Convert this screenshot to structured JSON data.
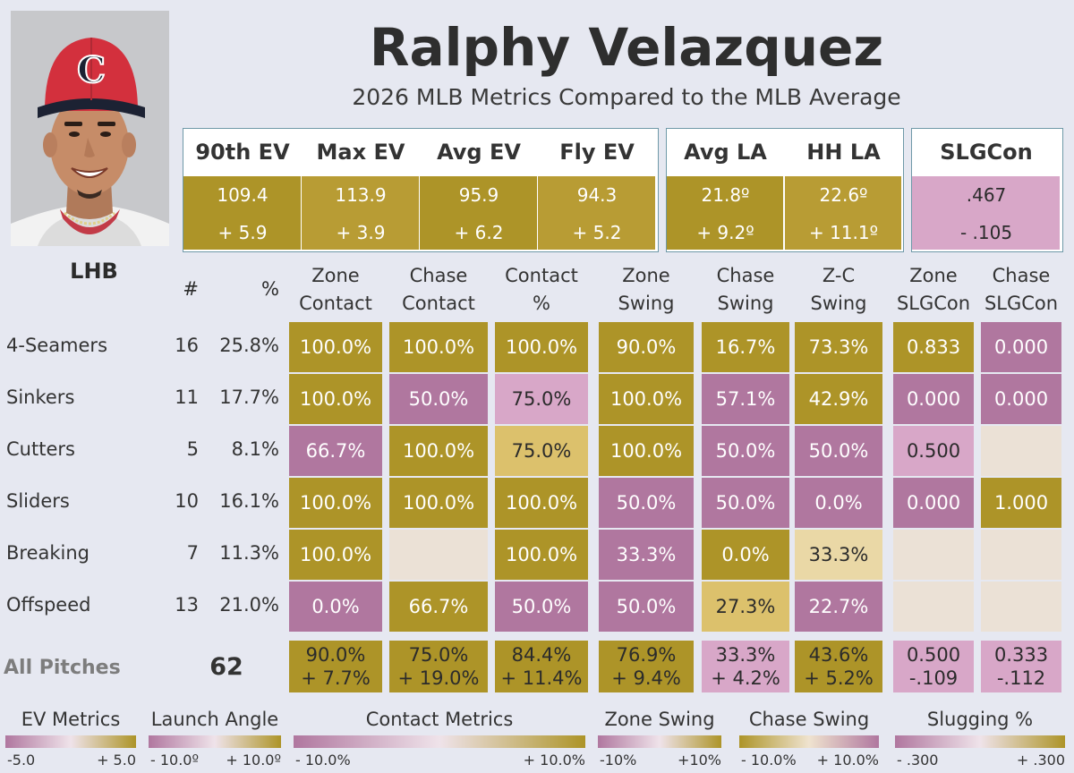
{
  "player": {
    "name": "Ralphy Velazquez",
    "subtitle": "2026 MLB Metrics Compared to the MLB Average",
    "handedness": "LHB",
    "cap_letter": "C"
  },
  "colors": {
    "positive": "#ad9428",
    "positive_light": "#dcc16c",
    "negative": "#b0779f",
    "negative_light": "#d8a7c8",
    "neutral": "#ebe1d6",
    "background": "#e6e8f1",
    "box_border": "#6f99a8"
  },
  "metric_boxes": [
    {
      "name": "exit-velocity",
      "metrics": [
        {
          "label": "90th EV",
          "value": "109.4",
          "diff": "+ 5.9"
        },
        {
          "label": "Max EV",
          "value": "113.9",
          "diff": "+ 3.9"
        },
        {
          "label": "Avg EV",
          "value": "95.9",
          "diff": "+ 6.2"
        },
        {
          "label": "Fly EV",
          "value": "94.3",
          "diff": "+ 5.2"
        }
      ]
    },
    {
      "name": "launch-angle",
      "metrics": [
        {
          "label": "Avg LA",
          "value": "21.8º",
          "diff": "+ 9.2º"
        },
        {
          "label": "HH LA",
          "value": "22.6º",
          "diff": "+ 11.1º"
        }
      ]
    },
    {
      "name": "slgcon",
      "metrics": [
        {
          "label": "SLGCon",
          "value": ".467",
          "diff": "- .105"
        }
      ]
    }
  ],
  "chart_data": {
    "type": "table",
    "title": "Ralphy Velazquez",
    "subtitle": "2026 MLB Metrics Compared to the MLB Average",
    "count_header": "#",
    "pct_header": "%",
    "columns": [
      {
        "line1": "Zone",
        "line2": "Contact"
      },
      {
        "line1": "Chase",
        "line2": "Contact"
      },
      {
        "line1": "Contact",
        "line2": "%"
      },
      {
        "line1": "Zone",
        "line2": "Swing"
      },
      {
        "line1": "Chase",
        "line2": "Swing"
      },
      {
        "line1": "Z-C",
        "line2": "Swing"
      },
      {
        "line1": "Zone",
        "line2": "SLGCon"
      },
      {
        "line1": "Chase",
        "line2": "SLGCon"
      }
    ],
    "rows": [
      {
        "pitch": "4-Seamers",
        "count": "16",
        "pct": "25.8%",
        "values": [
          "100.0%",
          "100.0%",
          "100.0%",
          "90.0%",
          "16.7%",
          "73.3%",
          "0.833",
          "0.000"
        ],
        "shades": [
          "P",
          "P",
          "P",
          "P",
          "P",
          "P",
          "P",
          "N"
        ]
      },
      {
        "pitch": "Sinkers",
        "count": "11",
        "pct": "17.7%",
        "values": [
          "100.0%",
          "50.0%",
          "75.0%",
          "100.0%",
          "57.1%",
          "42.9%",
          "0.000",
          "0.000"
        ],
        "shades": [
          "P",
          "N",
          "n",
          "P",
          "N",
          "P",
          "N",
          "N"
        ]
      },
      {
        "pitch": "Cutters",
        "count": "5",
        "pct": "8.1%",
        "values": [
          "66.7%",
          "100.0%",
          "75.0%",
          "100.0%",
          "50.0%",
          "50.0%",
          "0.500",
          ""
        ],
        "shades": [
          "N",
          "P",
          "p",
          "P",
          "N",
          "N",
          "n",
          "E"
        ]
      },
      {
        "pitch": "Sliders",
        "count": "10",
        "pct": "16.1%",
        "values": [
          "100.0%",
          "100.0%",
          "100.0%",
          "50.0%",
          "50.0%",
          "0.0%",
          "0.000",
          "1.000"
        ],
        "shades": [
          "P",
          "P",
          "P",
          "N",
          "N",
          "N",
          "N",
          "P"
        ]
      },
      {
        "pitch": "Breaking",
        "count": "7",
        "pct": "11.3%",
        "values": [
          "100.0%",
          "",
          "100.0%",
          "33.3%",
          "0.0%",
          "33.3%",
          "",
          ""
        ],
        "shades": [
          "P",
          "E",
          "P",
          "N",
          "P",
          "q",
          "E",
          "E"
        ]
      },
      {
        "pitch": "Offspeed",
        "count": "13",
        "pct": "21.0%",
        "values": [
          "0.0%",
          "66.7%",
          "50.0%",
          "50.0%",
          "27.3%",
          "22.7%",
          "",
          ""
        ],
        "shades": [
          "N",
          "P",
          "N",
          "N",
          "p",
          "N",
          "E",
          "E"
        ]
      }
    ],
    "totals": {
      "label": "All Pitches",
      "count": "62",
      "values": [
        "90.0%",
        "75.0%",
        "84.4%",
        "76.9%",
        "33.3%",
        "43.6%",
        "0.500",
        "0.333"
      ],
      "diffs": [
        "+ 7.7%",
        "+ 19.0%",
        "+ 11.4%",
        "+ 9.4%",
        "+ 4.2%",
        "+ 5.2%",
        "-.109",
        "-.112"
      ],
      "shades": [
        "P",
        "P",
        "P",
        "P",
        "n",
        "P",
        "n",
        "n"
      ]
    },
    "legends": [
      {
        "title": "EV Metrics",
        "min": "-5.0",
        "max": "+ 5.0",
        "reverse": false
      },
      {
        "title": "Launch Angle",
        "min": "- 10.0º",
        "max": "+ 10.0º",
        "reverse": false
      },
      {
        "title": "Contact Metrics",
        "min": "- 10.0%",
        "max": "+ 10.0%",
        "reverse": false
      },
      {
        "title": "Zone Swing",
        "min": "-10%",
        "max": "+10%",
        "reverse": false
      },
      {
        "title": "Chase Swing",
        "min": "- 10.0%",
        "max": "+ 10.0%",
        "reverse": true
      },
      {
        "title": "Slugging %",
        "min": "- .300",
        "max": "+ .300",
        "reverse": false
      }
    ]
  }
}
